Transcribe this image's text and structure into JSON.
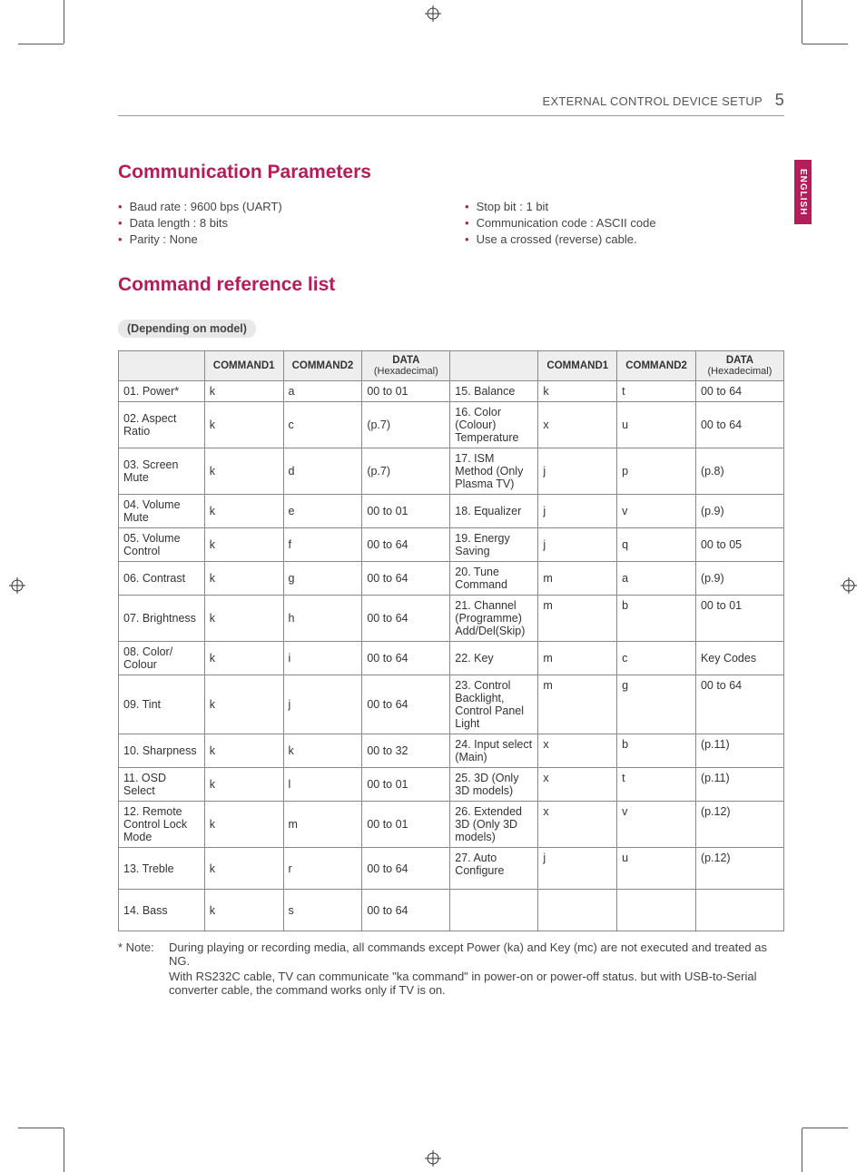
{
  "header": {
    "title": "EXTERNAL CONTROL DEVICE SETUP",
    "page_number": "5"
  },
  "side_tab": "ENGLISH",
  "section1": {
    "title": "Communication Parameters",
    "left_items": [
      "Baud rate : 9600 bps (UART)",
      "Data length : 8 bits",
      "Parity : None"
    ],
    "right_items": [
      "Stop bit : 1 bit",
      "Communication code : ASCII code",
      "Use a crossed (reverse) cable."
    ]
  },
  "section2": {
    "title": "Command reference list",
    "badge": "(Depending on model)",
    "headers": {
      "blank": "",
      "c1": "COMMAND1",
      "c2": "COMMAND2",
      "data": "DATA",
      "data_sub": "(Hexadecimal)"
    },
    "rows": [
      {
        "l": {
          "n": "01. Power*",
          "c1": "k",
          "c2": "a",
          "d": "00 to 01"
        },
        "r": {
          "n": "15. Balance",
          "c1": "k",
          "c2": "t",
          "d": "00 to 64"
        }
      },
      {
        "l": {
          "n": "02. Aspect Ratio",
          "c1": "k",
          "c2": "c",
          "d": "(p.7)"
        },
        "r": {
          "n": "16. Color (Colour) Temperature",
          "c1": "x",
          "c2": "u",
          "d": "00 to 64"
        }
      },
      {
        "l": {
          "n": "03. Screen Mute",
          "c1": "k",
          "c2": "d",
          "d": "(p.7)"
        },
        "r": {
          "n": "17. ISM Method (Only Plasma TV)",
          "c1": "j",
          "c2": "p",
          "d": "(p.8)"
        }
      },
      {
        "l": {
          "n": "04. Volume Mute",
          "c1": "k",
          "c2": "e",
          "d": "00 to 01"
        },
        "r": {
          "n": "18. Equalizer",
          "c1": "j",
          "c2": "v",
          "d": "(p.9)"
        }
      },
      {
        "l": {
          "n": "05. Volume Control",
          "c1": "k",
          "c2": "f",
          "d": "00 to 64"
        },
        "r": {
          "n": "19. Energy Saving",
          "c1": "j",
          "c2": "q",
          "d": "00 to 05"
        }
      },
      {
        "l": {
          "n": "06. Contrast",
          "c1": "k",
          "c2": "g",
          "d": "00 to 64"
        },
        "r": {
          "n": "20. Tune Command",
          "c1": "m",
          "c2": "a",
          "d": "(p.9)"
        }
      },
      {
        "l": {
          "n": "07. Brightness",
          "c1": "k",
          "c2": "h",
          "d": "00 to 64"
        },
        "r": {
          "n": "21. Channel (Programme) Add/Del(Skip)",
          "c1": "m",
          "c2": "b",
          "d": "00 to 01",
          "top": true
        }
      },
      {
        "l": {
          "n": "08. Color/ Colour",
          "c1": "k",
          "c2": "i",
          "d": "00 to 64"
        },
        "r": {
          "n": "22. Key",
          "c1": "m",
          "c2": "c",
          "d": "Key Codes"
        }
      },
      {
        "l": {
          "n": "09. Tint",
          "c1": "k",
          "c2": "j",
          "d": "00 to 64"
        },
        "r": {
          "n": "23. Control Backlight, Control Panel Light",
          "c1": "m",
          "c2": "g",
          "d": "00 to 64",
          "top": true
        }
      },
      {
        "l": {
          "n": "10. Sharpness",
          "c1": "k",
          "c2": "k",
          "d": "00 to 32"
        },
        "r": {
          "n": "24. Input select (Main)",
          "c1": "x",
          "c2": "b",
          "d": "(p.11)",
          "top": true
        }
      },
      {
        "l": {
          "n": "11. OSD Select",
          "c1": "k",
          "c2": "l",
          "d": "00 to 01"
        },
        "r": {
          "n": "25. 3D (Only 3D models)",
          "c1": "x",
          "c2": "t",
          "d": "(p.11)",
          "top": true
        }
      },
      {
        "l": {
          "n": "12. Remote Control Lock Mode",
          "c1": "k",
          "c2": "m",
          "d": "00 to 01"
        },
        "r": {
          "n": "26. Extended 3D (Only 3D models)",
          "c1": "x",
          "c2": "v",
          "d": "(p.12)",
          "top": true
        }
      },
      {
        "l": {
          "n": "13. Treble",
          "c1": "k",
          "c2": "r",
          "d": "00 to 64"
        },
        "r": {
          "n": "27. Auto Configure",
          "c1": "j",
          "c2": "u",
          "d": "(p.12)",
          "top": true
        },
        "tall": true
      },
      {
        "l": {
          "n": "14. Bass",
          "c1": "k",
          "c2": "s",
          "d": "00 to 64"
        },
        "r": {
          "n": "",
          "c1": "",
          "c2": "",
          "d": ""
        },
        "tall": true
      }
    ]
  },
  "note": {
    "label": "* Note:",
    "lines": [
      "During playing or recording media, all commands except Power (ka) and Key (mc) are not executed and treated as NG.",
      "With RS232C cable, TV can communicate \"ka command\" in power-on or power-off status. but with USB-to-Serial converter cable, the command works only if TV is on."
    ]
  },
  "colors": {
    "accent": "#b51d5a",
    "text": "#3a3a3a",
    "header_bg": "#eeeeee",
    "border": "#888888"
  }
}
